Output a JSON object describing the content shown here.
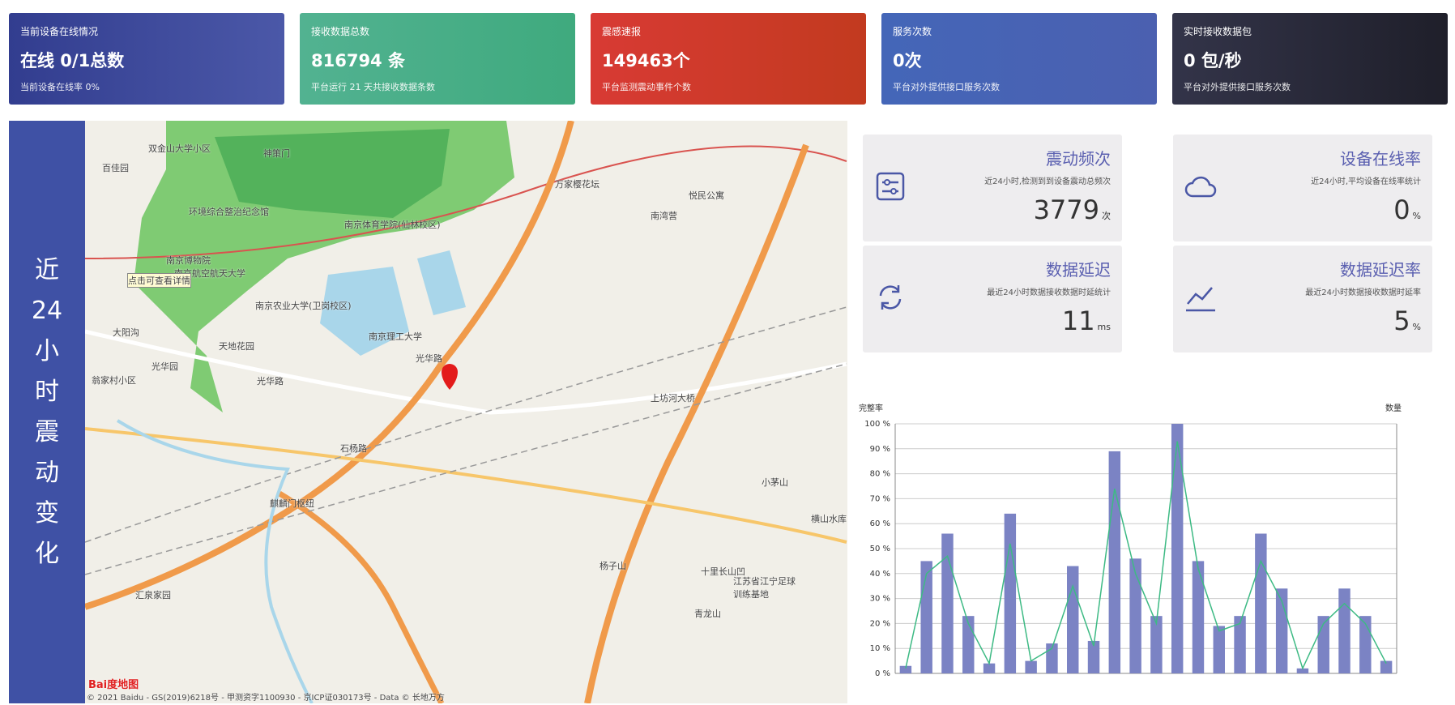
{
  "header_cards": [
    {
      "label": "当前设备在线情况",
      "value": "在线 0/1总数",
      "sub": "当前设备在线率 0%"
    },
    {
      "label": "接收数据总数",
      "value": "816794 条",
      "sub": "平台运行 21 天共接收数据条数"
    },
    {
      "label": "震感速报",
      "value": "149463个",
      "sub": "平台监测震动事件个数"
    },
    {
      "label": "服务次数",
      "value": "0次",
      "sub": "平台对外提供接口服务次数"
    },
    {
      "label": "实时接收数据包",
      "value": "0 包/秒",
      "sub": "平台对外提供接口服务次数"
    }
  ],
  "side_title": "近24小时震动变化",
  "map": {
    "labels": [
      "百佳园",
      "双金山大学小区",
      "神策门",
      "环境综合整治纪念馆",
      "南京体育学院(仙林校区)",
      "万家樱花坛",
      "悦民公寓",
      "南湾营",
      "南京博物院",
      "南京航空航天大学",
      "南京农业大学(卫岗校区)",
      "南京理工大学",
      "光华路",
      "光华路",
      "上坊河大桥",
      "石杨路",
      "麒麟门枢纽",
      "小茅山",
      "横山水库",
      "十里长山凹",
      "江苏省江宁足球训练基地",
      "青龙山",
      "汇泉家园",
      "杨子山",
      "大阳沟",
      "光华园",
      "天地花园",
      "翁家村小区",
      "点击可查看详情"
    ],
    "logo": "Bai度地图",
    "copyright": "© 2021 Baidu - GS(2019)6218号 - 甲测资字1100930 - 京ICP证030173号 - Data © 长地万方"
  },
  "stat_cards": [
    {
      "title": "震动频次",
      "desc": "近24小时,检测到到设备震动总频次",
      "value": "3779",
      "unit": "次"
    },
    {
      "title": "设备在线率",
      "desc": "近24小时,平均设备在线率统计",
      "value": "0",
      "unit": "%"
    },
    {
      "title": "数据延迟",
      "desc": "最近24小时数据接收数据时延统计",
      "value": "11",
      "unit": "ms"
    },
    {
      "title": "数据延迟率",
      "desc": "最近24小时数据接收数据时延率",
      "value": "5",
      "unit": "%"
    }
  ],
  "chart_data": {
    "type": "bar",
    "y_label": "完整率",
    "y2_label": "数量",
    "ylim": [
      0,
      100
    ],
    "yticks": [
      {
        "value": 0,
        "label": "0 %"
      },
      {
        "value": 10,
        "label": "10 %"
      },
      {
        "value": 20,
        "label": "20 %"
      },
      {
        "value": 30,
        "label": "30 %"
      },
      {
        "value": 40,
        "label": "40 %"
      },
      {
        "value": 50,
        "label": "50 %"
      },
      {
        "value": 60,
        "label": "60 %"
      },
      {
        "value": 70,
        "label": "70 %"
      },
      {
        "value": 80,
        "label": "80 %"
      },
      {
        "value": 90,
        "label": "90 %"
      },
      {
        "value": 100,
        "label": "100 %"
      }
    ],
    "grid": true,
    "series": [
      {
        "type": "bar",
        "color": "#7b83c4",
        "values": [
          3,
          45,
          56,
          23,
          4,
          64,
          5,
          12,
          43,
          13,
          89,
          46,
          23,
          100,
          45,
          19,
          23,
          56,
          34,
          2,
          23,
          34,
          23,
          5
        ]
      },
      {
        "type": "line",
        "color": "#3dba84",
        "values": [
          2,
          40,
          47,
          20,
          4,
          52,
          5,
          10,
          35,
          11,
          74,
          40,
          20,
          93,
          42,
          17,
          20,
          45,
          29,
          2,
          20,
          28,
          20,
          4
        ]
      }
    ]
  }
}
